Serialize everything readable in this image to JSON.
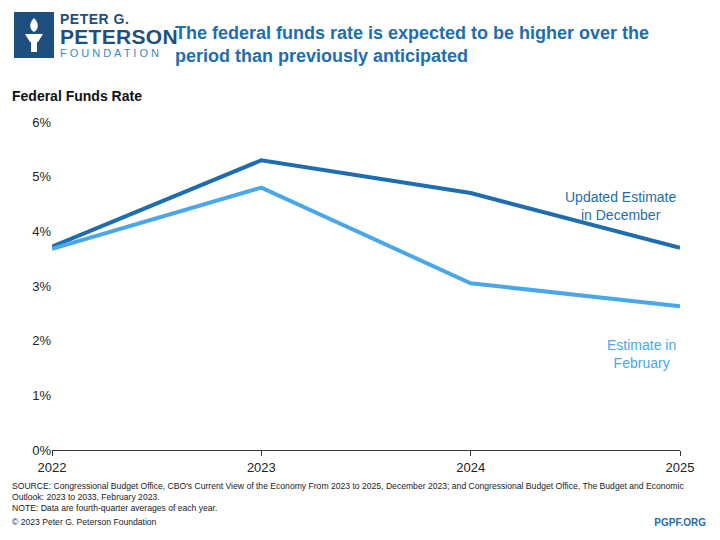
{
  "chart_data": {
    "type": "line",
    "title": "The federal funds rate is expected to be higher over the period than previously anticipated",
    "ylabel": "Federal Funds Rate",
    "x": [
      2022,
      2023,
      2024,
      2025
    ],
    "xlim": [
      2022,
      2025
    ],
    "xticks": [
      2022,
      2023,
      2024,
      2025
    ],
    "ylim": [
      0,
      6
    ],
    "yticks": [
      {
        "value": 0,
        "label": "0%"
      },
      {
        "value": 1,
        "label": "1%"
      },
      {
        "value": 2,
        "label": "2%"
      },
      {
        "value": 3,
        "label": "3%"
      },
      {
        "value": 4,
        "label": "4%"
      },
      {
        "value": 5,
        "label": "5%"
      },
      {
        "value": 6,
        "label": "6%"
      }
    ],
    "grid": false,
    "series": [
      {
        "name": "Updated Estimate in December",
        "color": "#1f6db1",
        "line_style": "solid",
        "values": [
          3.72,
          5.3,
          4.7,
          3.7
        ]
      },
      {
        "name": "Estimate in February",
        "color": "#4aa8ea",
        "line_style": "solid",
        "values": [
          3.68,
          4.8,
          3.05,
          2.63
        ]
      }
    ]
  },
  "page": {
    "logo": [
      "PETER G.",
      "PETERSON",
      "FOUNDATION"
    ],
    "source": "SOURCE: Congressional Budget Office, CBO's Current View of the Economy From 2023 to 2025, December 2023; and Congressional Budget Office, The Budget and Economic Outlook: 2023 to 2033, February 2023.",
    "note": "NOTE: Data are fourth-quarter averages of each year.",
    "copyright": "© 2023 Peter G. Peterson Foundation",
    "website": "PGPF.ORG"
  }
}
